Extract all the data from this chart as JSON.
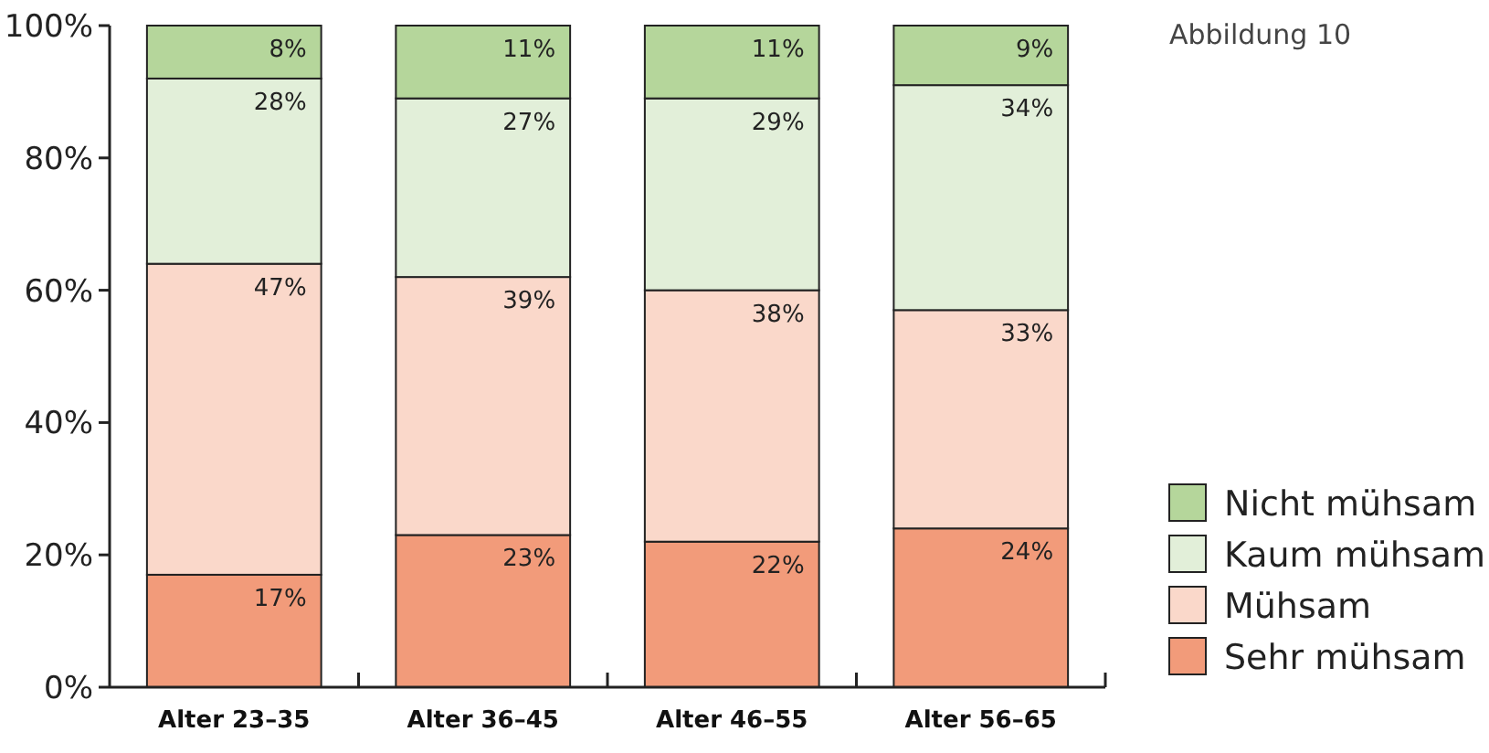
{
  "chart_data": {
    "type": "bar",
    "stacked": true,
    "title": "Abbildung 10",
    "categories": [
      "Alter 23–35",
      "Alter 36–45",
      "Alter 46–55",
      "Alter 56–65"
    ],
    "series": [
      {
        "name": "Sehr mühsam",
        "color": "#f29b7a",
        "values": [
          17,
          23,
          22,
          24
        ],
        "value_labels": [
          "17%",
          "23%",
          "22%",
          "24%"
        ]
      },
      {
        "name": "Mühsam",
        "color": "#fad8ca",
        "values": [
          47,
          39,
          38,
          33
        ],
        "value_labels": [
          "47%",
          "39%",
          "38%",
          "33%"
        ]
      },
      {
        "name": "Kaum mühsam",
        "color": "#e2efd9",
        "values": [
          28,
          27,
          29,
          34
        ],
        "value_labels": [
          "28%",
          "27%",
          "29%",
          "34%"
        ]
      },
      {
        "name": "Nicht mühsam",
        "color": "#b5d69b",
        "values": [
          8,
          11,
          11,
          9
        ],
        "value_labels": [
          "8%",
          "11%",
          "11%",
          "9%"
        ]
      }
    ],
    "ylim": [
      0,
      100
    ],
    "yticks": [
      {
        "value": 0,
        "label": "0%"
      },
      {
        "value": 20,
        "label": "20%"
      },
      {
        "value": 40,
        "label": "40%"
      },
      {
        "value": 60,
        "label": "60%"
      },
      {
        "value": 80,
        "label": "80%"
      },
      {
        "value": 100,
        "label": "100%"
      }
    ],
    "legend": "bottom right",
    "grid": false
  }
}
